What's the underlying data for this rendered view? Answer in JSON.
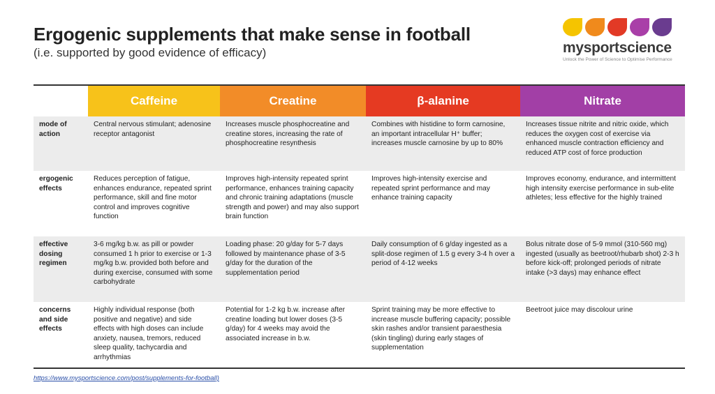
{
  "title": "Ergogenic supplements that make sense in football",
  "subtitle": "(i.e. supported by good evidence of efficacy)",
  "logo": {
    "brand": "mysportscience",
    "tagline": "Unlock the Power of Science to Optimise Performance",
    "petal_colors": [
      "#f5c400",
      "#f08a1c",
      "#e23a26",
      "#a93fa8",
      "#6a3c8f"
    ]
  },
  "table": {
    "headers": [
      {
        "label": "",
        "color": "#ffffff"
      },
      {
        "label": "Caffeine",
        "color": "#f7c21a"
      },
      {
        "label": "Creatine",
        "color": "#f28c28"
      },
      {
        "label": "β-alanine",
        "color": "#e53a22"
      },
      {
        "label": "Nitrate",
        "color": "#a23fa6"
      }
    ],
    "rows": [
      {
        "label": "mode of action",
        "cells": [
          "Central nervous stimulant; adenosine receptor antagonist",
          "Increases muscle phosphocreatine and creatine stores, increasing the rate of  phosphocreatine resynthesis",
          "Combines with histidine to form carnosine, an important intracellular H⁺ buffer; increases muscle carnosine by up to 80%",
          "Increases tissue nitrite and nitric oxide, which reduces the oxygen cost of exercise via enhanced muscle contraction efficiency and reduced ATP cost of force production"
        ]
      },
      {
        "label": "ergogenic effects",
        "cells": [
          "Reduces perception of fatigue, enhances endurance, repeated sprint performance, skill and fine motor control and improves cognitive function",
          "Improves high-intensity repeated sprint performance, enhances training capacity and chronic training adaptations (muscle strength and power) and may also support brain function",
          "Improves high-intensity exercise and repeated sprint performance and may enhance training capacity",
          "Improves economy, endurance, and intermittent high intensity exercise performance in sub-elite athletes; less effective for the highly trained"
        ]
      },
      {
        "label": "effective dosing regimen",
        "cells": [
          "3-6 mg/kg b.w. as pill or powder consumed 1 h prior to exercise or 1-3 mg/kg b.w. provided both before and during exercise, consumed with some carbohydrate",
          "Loading phase: 20 g/day for  5-7 days followed by maintenance phase of 3-5 g/day for the duration of the supplementation period",
          "Daily consumption of 6 g/day ingested as a split-dose regimen of 1.5 g every 3-4 h over a period of 4-12 weeks",
          "Bolus nitrate dose of 5-9 mmol (310-560 mg) ingested (usually as beetroot/rhubarb shot) 2-3 h before kick-off; prolonged periods  of  nitrate intake (>3 days) may enhance effect"
        ]
      },
      {
        "label": "concerns and side effects",
        "cells": [
          "Highly individual response (both positive and negative) and side effects with high doses can include anxiety, nausea, tremors, reduced sleep quality, tachycardia and arrhythmias",
          "Potential for 1-2 kg b.w. increase after creatine loading but lower doses  (3-5 g/day) for 4 weeks may avoid the associated increase in b.w.",
          "Sprint training may be more effective to increase muscle buffering capacity; possible skin rashes and/or transient paraesthesia (skin tingling) during early stages of supplementation",
          "Beetroot juice may discolour urine"
        ]
      }
    ]
  },
  "source_link": "https://www.mysportscience.com/post/supplements-for-football)"
}
